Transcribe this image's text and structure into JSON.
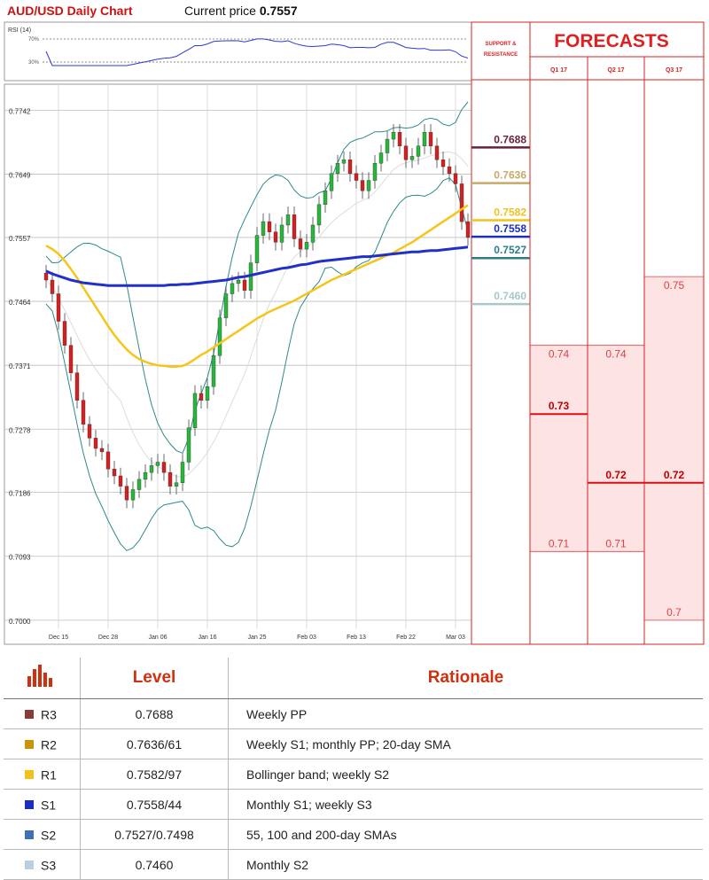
{
  "header": {
    "title": "AUD/USD Daily Chart",
    "price_label": "Current price",
    "price_value": "0.7557"
  },
  "chart_data": {
    "type": "candlestick",
    "yticks": [
      0.7742,
      0.7649,
      0.7557,
      0.7464,
      0.7371,
      0.7278,
      0.7186,
      0.7093,
      0.7
    ],
    "ylim": [
      0.6965,
      0.778
    ],
    "xticks": [
      "Dec 15",
      "Dec 28",
      "Jan 06",
      "Jan 16",
      "Jan 25",
      "Feb 03",
      "Feb 13",
      "Feb 22",
      "Mar 03"
    ],
    "xtick_index": [
      2,
      10,
      18,
      26,
      34,
      42,
      50,
      58,
      66
    ],
    "num_bars": 69,
    "closes": [
      0.7495,
      0.7475,
      0.7435,
      0.74,
      0.736,
      0.732,
      0.7285,
      0.7265,
      0.725,
      0.7245,
      0.722,
      0.721,
      0.7195,
      0.7175,
      0.719,
      0.7205,
      0.7215,
      0.7225,
      0.723,
      0.7215,
      0.7195,
      0.72,
      0.723,
      0.728,
      0.733,
      0.732,
      0.734,
      0.7385,
      0.744,
      0.7475,
      0.749,
      0.7495,
      0.748,
      0.752,
      0.756,
      0.758,
      0.7565,
      0.755,
      0.7575,
      0.759,
      0.7555,
      0.754,
      0.755,
      0.7575,
      0.7605,
      0.7625,
      0.765,
      0.7665,
      0.767,
      0.765,
      0.764,
      0.7625,
      0.764,
      0.7665,
      0.768,
      0.77,
      0.771,
      0.769,
      0.767,
      0.7675,
      0.769,
      0.771,
      0.769,
      0.767,
      0.766,
      0.765,
      0.7635,
      0.758,
      0.7557
    ],
    "sma_slow": [
      0.7545,
      0.754,
      0.7533,
      0.7523,
      0.7511,
      0.7498,
      0.7484,
      0.747,
      0.7456,
      0.7442,
      0.7428,
      0.7415,
      0.7404,
      0.7394,
      0.7386,
      0.738,
      0.7376,
      0.7373,
      0.7371,
      0.737,
      0.7369,
      0.7369,
      0.737,
      0.7374,
      0.738,
      0.7386,
      0.7391,
      0.7397,
      0.7403,
      0.7409,
      0.7415,
      0.7421,
      0.7427,
      0.7433,
      0.7439,
      0.7444,
      0.7449,
      0.7453,
      0.7457,
      0.7461,
      0.7465,
      0.747,
      0.7475,
      0.748,
      0.7485,
      0.749,
      0.7495,
      0.7499,
      0.7503,
      0.7507,
      0.7511,
      0.7515,
      0.7519,
      0.7523,
      0.7527,
      0.7531,
      0.7535,
      0.754,
      0.7545,
      0.755,
      0.7556,
      0.7562,
      0.7568,
      0.7574,
      0.758,
      0.7586,
      0.7592,
      0.7598,
      0.7604
    ],
    "sma_200": [
      0.7508,
      0.7504,
      0.7501,
      0.7498,
      0.7495,
      0.7493,
      0.7491,
      0.749,
      0.7489,
      0.7488,
      0.7487,
      0.7487,
      0.7487,
      0.7487,
      0.7487,
      0.7487,
      0.7487,
      0.7487,
      0.7487,
      0.7487,
      0.7488,
      0.7488,
      0.7489,
      0.7489,
      0.749,
      0.7491,
      0.7492,
      0.7493,
      0.7494,
      0.7495,
      0.7497,
      0.7499,
      0.75,
      0.7502,
      0.7504,
      0.7506,
      0.7508,
      0.751,
      0.7512,
      0.7513,
      0.7515,
      0.7517,
      0.7518,
      0.752,
      0.7522,
      0.7523,
      0.7524,
      0.7525,
      0.7526,
      0.7527,
      0.7528,
      0.7529,
      0.7529,
      0.753,
      0.7531,
      0.7532,
      0.7533,
      0.7534,
      0.7535,
      0.7536,
      0.7536,
      0.7537,
      0.7538,
      0.7538,
      0.7539,
      0.754,
      0.7541,
      0.7542,
      0.7543
    ],
    "levels": [
      {
        "label": "0.7688",
        "value": 0.7688,
        "color": "#6b1f3a"
      },
      {
        "label": "0.7636",
        "value": 0.7636,
        "color": "#c8a96a"
      },
      {
        "label": "0.7582",
        "value": 0.7582,
        "color": "#f2c21a"
      },
      {
        "label": "0.7558",
        "value": 0.7558,
        "color": "#1a2fbf"
      },
      {
        "label": "0.7527",
        "value": 0.7527,
        "color": "#2f7b8c"
      },
      {
        "label": "0.7460",
        "value": 0.746,
        "color": "#a9c7c7"
      }
    ],
    "rsi": {
      "label": "RSI (14)",
      "levels": [
        "70%",
        "30%"
      ]
    }
  },
  "sr_header": {
    "line1": "SUPPORT &",
    "line2": "RESISTANCE"
  },
  "forecasts": {
    "title": "FORECASTS",
    "columns": [
      {
        "label": "Q1 17",
        "high": "0.74",
        "mid": "0.73",
        "low": "0.71",
        "high_v": 0.74,
        "mid_v": 0.73,
        "low_v": 0.71
      },
      {
        "label": "Q2 17",
        "high": "0.74",
        "mid": "0.72",
        "low": "0.71",
        "high_v": 0.74,
        "mid_v": 0.72,
        "low_v": 0.71
      },
      {
        "label": "Q3 17",
        "high": "0.75",
        "mid": "0.72",
        "low": "0.7",
        "high_v": 0.75,
        "mid_v": 0.72,
        "low_v": 0.7
      }
    ]
  },
  "table": {
    "headers": {
      "level": "Level",
      "rationale": "Rationale"
    },
    "rows": [
      {
        "code": "R3",
        "level": "0.7688",
        "rationale": "Weekly PP",
        "color": "#8b3a3a"
      },
      {
        "code": "R2",
        "level": "0.7636/61",
        "rationale": "Weekly S1; monthly PP; 20-day SMA",
        "color": "#c9940a"
      },
      {
        "code": "R1",
        "level": "0.7582/97",
        "rationale": "Bollinger band; weekly S2",
        "color": "#f2c21a"
      },
      {
        "code": "S1",
        "level": "0.7558/44",
        "rationale": "Monthly S1; weekly S3",
        "color": "#1a2fbf"
      },
      {
        "code": "S2",
        "level": "0.7527/0.7498",
        "rationale": "55, 100 and 200-day SMAs",
        "color": "#3f6fb5"
      },
      {
        "code": "S3",
        "level": "0.7460",
        "rationale": "Monthly S2",
        "color": "#b8cfe3"
      }
    ]
  }
}
